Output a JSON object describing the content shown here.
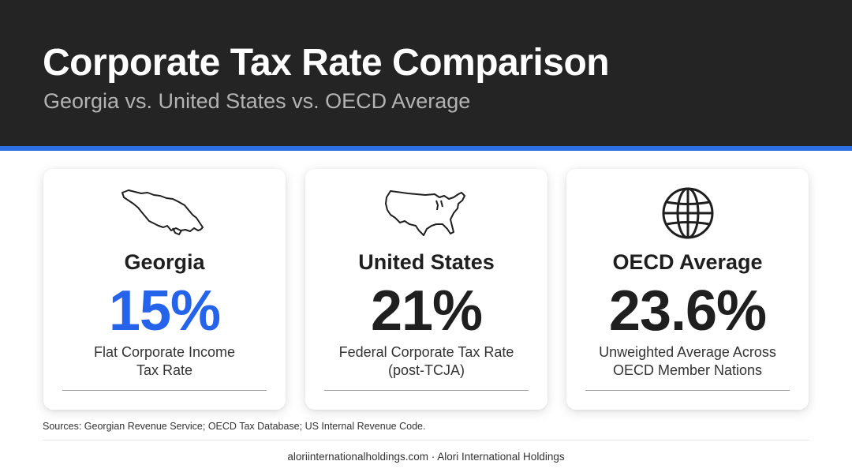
{
  "header": {
    "title": "Corporate Tax Rate Comparison",
    "subtitle": "Georgia vs. United States vs. OECD Average"
  },
  "cards": [
    {
      "icon": "georgia-map-icon",
      "name": "Georgia",
      "value": "15%",
      "desc_line1": "Flat Corporate Income",
      "desc_line2": "Tax Rate",
      "value_color": "#2563eb"
    },
    {
      "icon": "usa-map-icon",
      "name": "United States",
      "value": "21%",
      "desc_line1": "Federal Corporate Tax Rate",
      "desc_line2": "(post-TCJA)",
      "value_color": "#1f1f1f"
    },
    {
      "icon": "globe-icon",
      "name": "OECD Average",
      "value": "23.6%",
      "desc_line1": "Unweighted Average Across",
      "desc_line2": "OECD Member Nations",
      "value_color": "#1f1f1f"
    }
  ],
  "sources": "Sources: Georgian Revenue Service; OECD Tax Database; US Internal Revenue Code.",
  "footer": "aloriinternationalholdings.com · Alori International Holdings",
  "colors": {
    "header_bg": "#242424",
    "accent": "#2d6fe5",
    "highlight_value": "#2563eb"
  }
}
